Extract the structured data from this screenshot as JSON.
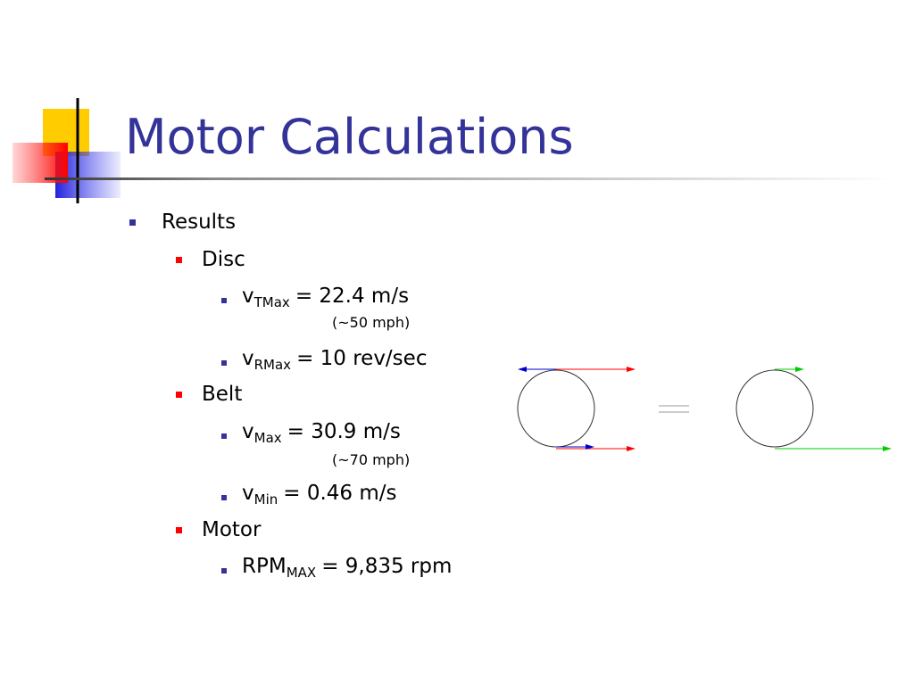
{
  "title": "Motor Calculations",
  "results": {
    "text": "Results",
    "disc": {
      "text": "Disc",
      "items": [
        {
          "base": "v",
          "sub": "TMax",
          "rest": "= 22.4 m/s",
          "note": "(~50 mph)"
        },
        {
          "base": "v",
          "sub": "RMax",
          "rest": "= 10 rev/sec"
        }
      ]
    },
    "belt": {
      "text": "Belt",
      "items": [
        {
          "base": "v",
          "sub": "Max",
          "rest": "= 30.9 m/s",
          "note": "(~70 mph)"
        },
        {
          "base": "v",
          "sub": "Min",
          "rest": "= 0.46 m/s"
        }
      ]
    },
    "motor": {
      "text": "Motor",
      "items": [
        {
          "base": "RPM",
          "sub": "MAX",
          "rest": "= 9,835 rpm"
        }
      ]
    }
  }
}
